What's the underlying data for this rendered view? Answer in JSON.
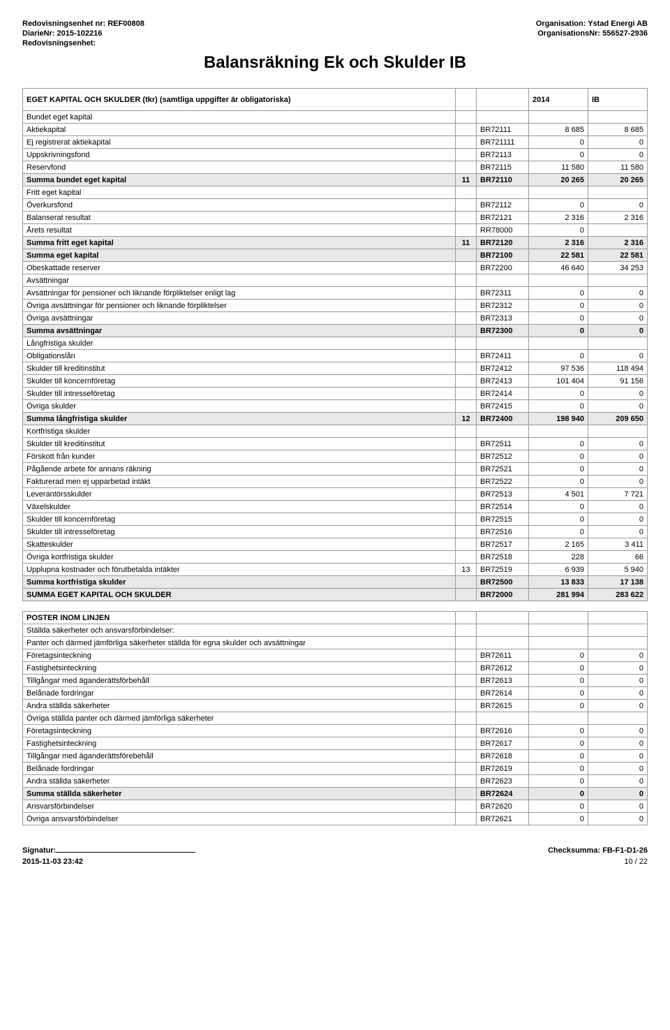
{
  "header": {
    "unit_label": "Redovisningsenhet nr: REF00808",
    "diarie_label": "DiarieNr: 2015-102216",
    "redov_label": "Redovisningsenhet:",
    "org_label": "Organisation: Ystad Energi AB",
    "orgnr_label": "OrganisationsNr: 556527-2936"
  },
  "title": "Balansräkning Ek och Skulder IB",
  "table_header": {
    "col1": "EGET KAPITAL OCH SKULDER (tkr)   (samtliga uppgifter är obligatoriska)",
    "year": "2014",
    "ib": "IB"
  },
  "rows": [
    {
      "label": "Bundet eget kapital",
      "section": true
    },
    {
      "label": "Aktiekapital",
      "code": "BR72111",
      "v1": "8 685",
      "v2": "8 685"
    },
    {
      "label": "Ej registrerat aktiekapital",
      "code": "BR721111",
      "v1": "0",
      "v2": "0"
    },
    {
      "label": "Uppskrivningsfond",
      "code": "BR72113",
      "v1": "0",
      "v2": "0"
    },
    {
      "label": "Reservfond",
      "code": "BR72115",
      "v1": "11 580",
      "v2": "11 580"
    },
    {
      "label": "Summa bundet eget kapital",
      "note": "11",
      "code": "BR72110",
      "v1": "20 265",
      "v2": "20 265",
      "bold": true
    },
    {
      "label": "Fritt eget kapital",
      "section": true
    },
    {
      "label": "Överkursfond",
      "code": "BR72112",
      "v1": "0",
      "v2": "0"
    },
    {
      "label": "Balanserat resultat",
      "code": "BR72121",
      "v1": "2 316",
      "v2": "2 316"
    },
    {
      "label": "Årets resultat",
      "code": "RR78000",
      "v1": "0",
      "v2": ""
    },
    {
      "label": "Summa fritt eget kapital",
      "note": "11",
      "code": "BR72120",
      "v1": "2 316",
      "v2": "2 316",
      "bold": true
    },
    {
      "label": "Summa eget kapital",
      "code": "BR72100",
      "v1": "22 581",
      "v2": "22 581",
      "bold": true
    },
    {
      "label": "Obeskattade reserver",
      "code": "BR72200",
      "v1": "46 640",
      "v2": "34 253"
    },
    {
      "label": "Avsättningar",
      "section": true
    },
    {
      "label": "Avsättningar för pensioner och liknande förpliktelser enligt lag",
      "code": "BR72311",
      "v1": "0",
      "v2": "0"
    },
    {
      "label": "Övriga avsättningar för pensioner och liknande förpliktelser",
      "code": "BR72312",
      "v1": "0",
      "v2": "0"
    },
    {
      "label": "Övriga avsättningar",
      "code": "BR72313",
      "v1": "0",
      "v2": "0"
    },
    {
      "label": "Summa avsättningar",
      "code": "BR72300",
      "v1": "0",
      "v2": "0",
      "bold": true
    },
    {
      "label": "Långfristiga skulder",
      "section": true
    },
    {
      "label": "Obligationslån",
      "code": "BR72411",
      "v1": "0",
      "v2": "0"
    },
    {
      "label": "Skulder till kreditinstitut",
      "code": "BR72412",
      "v1": "97 536",
      "v2": "118 494"
    },
    {
      "label": "Skulder till koncernföretag",
      "code": "BR72413",
      "v1": "101 404",
      "v2": "91 156"
    },
    {
      "label": "Skulder till intresseföretag",
      "code": "BR72414",
      "v1": "0",
      "v2": "0"
    },
    {
      "label": "Övriga skulder",
      "code": "BR72415",
      "v1": "0",
      "v2": "0"
    },
    {
      "label": "Summa långfristiga skulder",
      "note": "12",
      "code": "BR72400",
      "v1": "198 940",
      "v2": "209 650",
      "bold": true
    },
    {
      "label": "Kortfristiga skulder",
      "section": true
    },
    {
      "label": "Skulder till kreditinstitut",
      "code": "BR72511",
      "v1": "0",
      "v2": "0"
    },
    {
      "label": "Förskott från kunder",
      "code": "BR72512",
      "v1": "0",
      "v2": "0"
    },
    {
      "label": "Pågående arbete för annans räkning",
      "code": "BR72521",
      "v1": "0",
      "v2": "0"
    },
    {
      "label": "Fakturerad men ej upparbetad intäkt",
      "code": "BR72522",
      "v1": "0",
      "v2": "0"
    },
    {
      "label": "Leverantörsskulder",
      "code": "BR72513",
      "v1": "4 501",
      "v2": "7 721"
    },
    {
      "label": "Växelskulder",
      "code": "BR72514",
      "v1": "0",
      "v2": "0"
    },
    {
      "label": "Skulder till koncernföretag",
      "code": "BR72515",
      "v1": "0",
      "v2": "0"
    },
    {
      "label": "Skulder till intresseföretag",
      "code": "BR72516",
      "v1": "0",
      "v2": "0"
    },
    {
      "label": "Skatteskulder",
      "code": "BR72517",
      "v1": "2 165",
      "v2": "3 411"
    },
    {
      "label": "Övriga kortfristiga skulder",
      "code": "BR72518",
      "v1": "228",
      "v2": "66"
    },
    {
      "label": "Upplupna kostnader och förutbetalda intäkter",
      "note": "13",
      "code": "BR72519",
      "v1": "6 939",
      "v2": "5 940"
    },
    {
      "label": "Summa kortfristiga skulder",
      "code": "BR72500",
      "v1": "13 833",
      "v2": "17 138",
      "bold": true
    },
    {
      "label": "SUMMA EGET KAPITAL OCH SKULDER",
      "code": "BR72000",
      "v1": "281 994",
      "v2": "283 622",
      "bold": true
    }
  ],
  "rows2": [
    {
      "label": "POSTER INOM LINJEN",
      "head": true
    },
    {
      "label": "Ställda säkerheter och ansvarsförbindelser:",
      "section": true
    },
    {
      "label": "Panter och därmed jämförliga säkerheter ställda för egna skulder och avsättningar",
      "section": true
    },
    {
      "label": "Företagsinteckning",
      "code": "BR72611",
      "v1": "0",
      "v2": "0"
    },
    {
      "label": "Fastighetsinteckning",
      "code": "BR72612",
      "v1": "0",
      "v2": "0"
    },
    {
      "label": "Tillgångar med äganderättsförbehåll",
      "code": "BR72613",
      "v1": "0",
      "v2": "0"
    },
    {
      "label": "Belånade fordringar",
      "code": "BR72614",
      "v1": "0",
      "v2": "0"
    },
    {
      "label": "Andra ställda säkerheter",
      "code": "BR72615",
      "v1": "0",
      "v2": "0"
    },
    {
      "label": "Övriga ställda panter och därmed jämförliga säkerheter",
      "section": true
    },
    {
      "label": "Företagsinteckning",
      "code": "BR72616",
      "v1": "0",
      "v2": "0"
    },
    {
      "label": "Fastighetsinteckning",
      "code": "BR72617",
      "v1": "0",
      "v2": "0"
    },
    {
      "label": "Tillgångar med äganderättsförebehåll",
      "code": "BR72618",
      "v1": "0",
      "v2": "0"
    },
    {
      "label": "Belånade fordringar",
      "code": "BR72619",
      "v1": "0",
      "v2": "0"
    },
    {
      "label": "Andra ställda säkerheter",
      "code": "BR72623",
      "v1": "0",
      "v2": "0"
    },
    {
      "label": "Summa ställda säkerheter",
      "code": "BR72624",
      "v1": "0",
      "v2": "0",
      "bold": true
    },
    {
      "label": "Ansvarsförbindelser",
      "code": "BR72620",
      "v1": "0",
      "v2": "0"
    },
    {
      "label": "Övriga ansvarsförbindelser",
      "code": "BR72621",
      "v1": "0",
      "v2": "0"
    }
  ],
  "footer": {
    "sig": "Signatur:",
    "checksum": "Checksumma: FB-F1-D1-26",
    "ts": "2015-11-03 23:42",
    "page": "10 / 22"
  }
}
